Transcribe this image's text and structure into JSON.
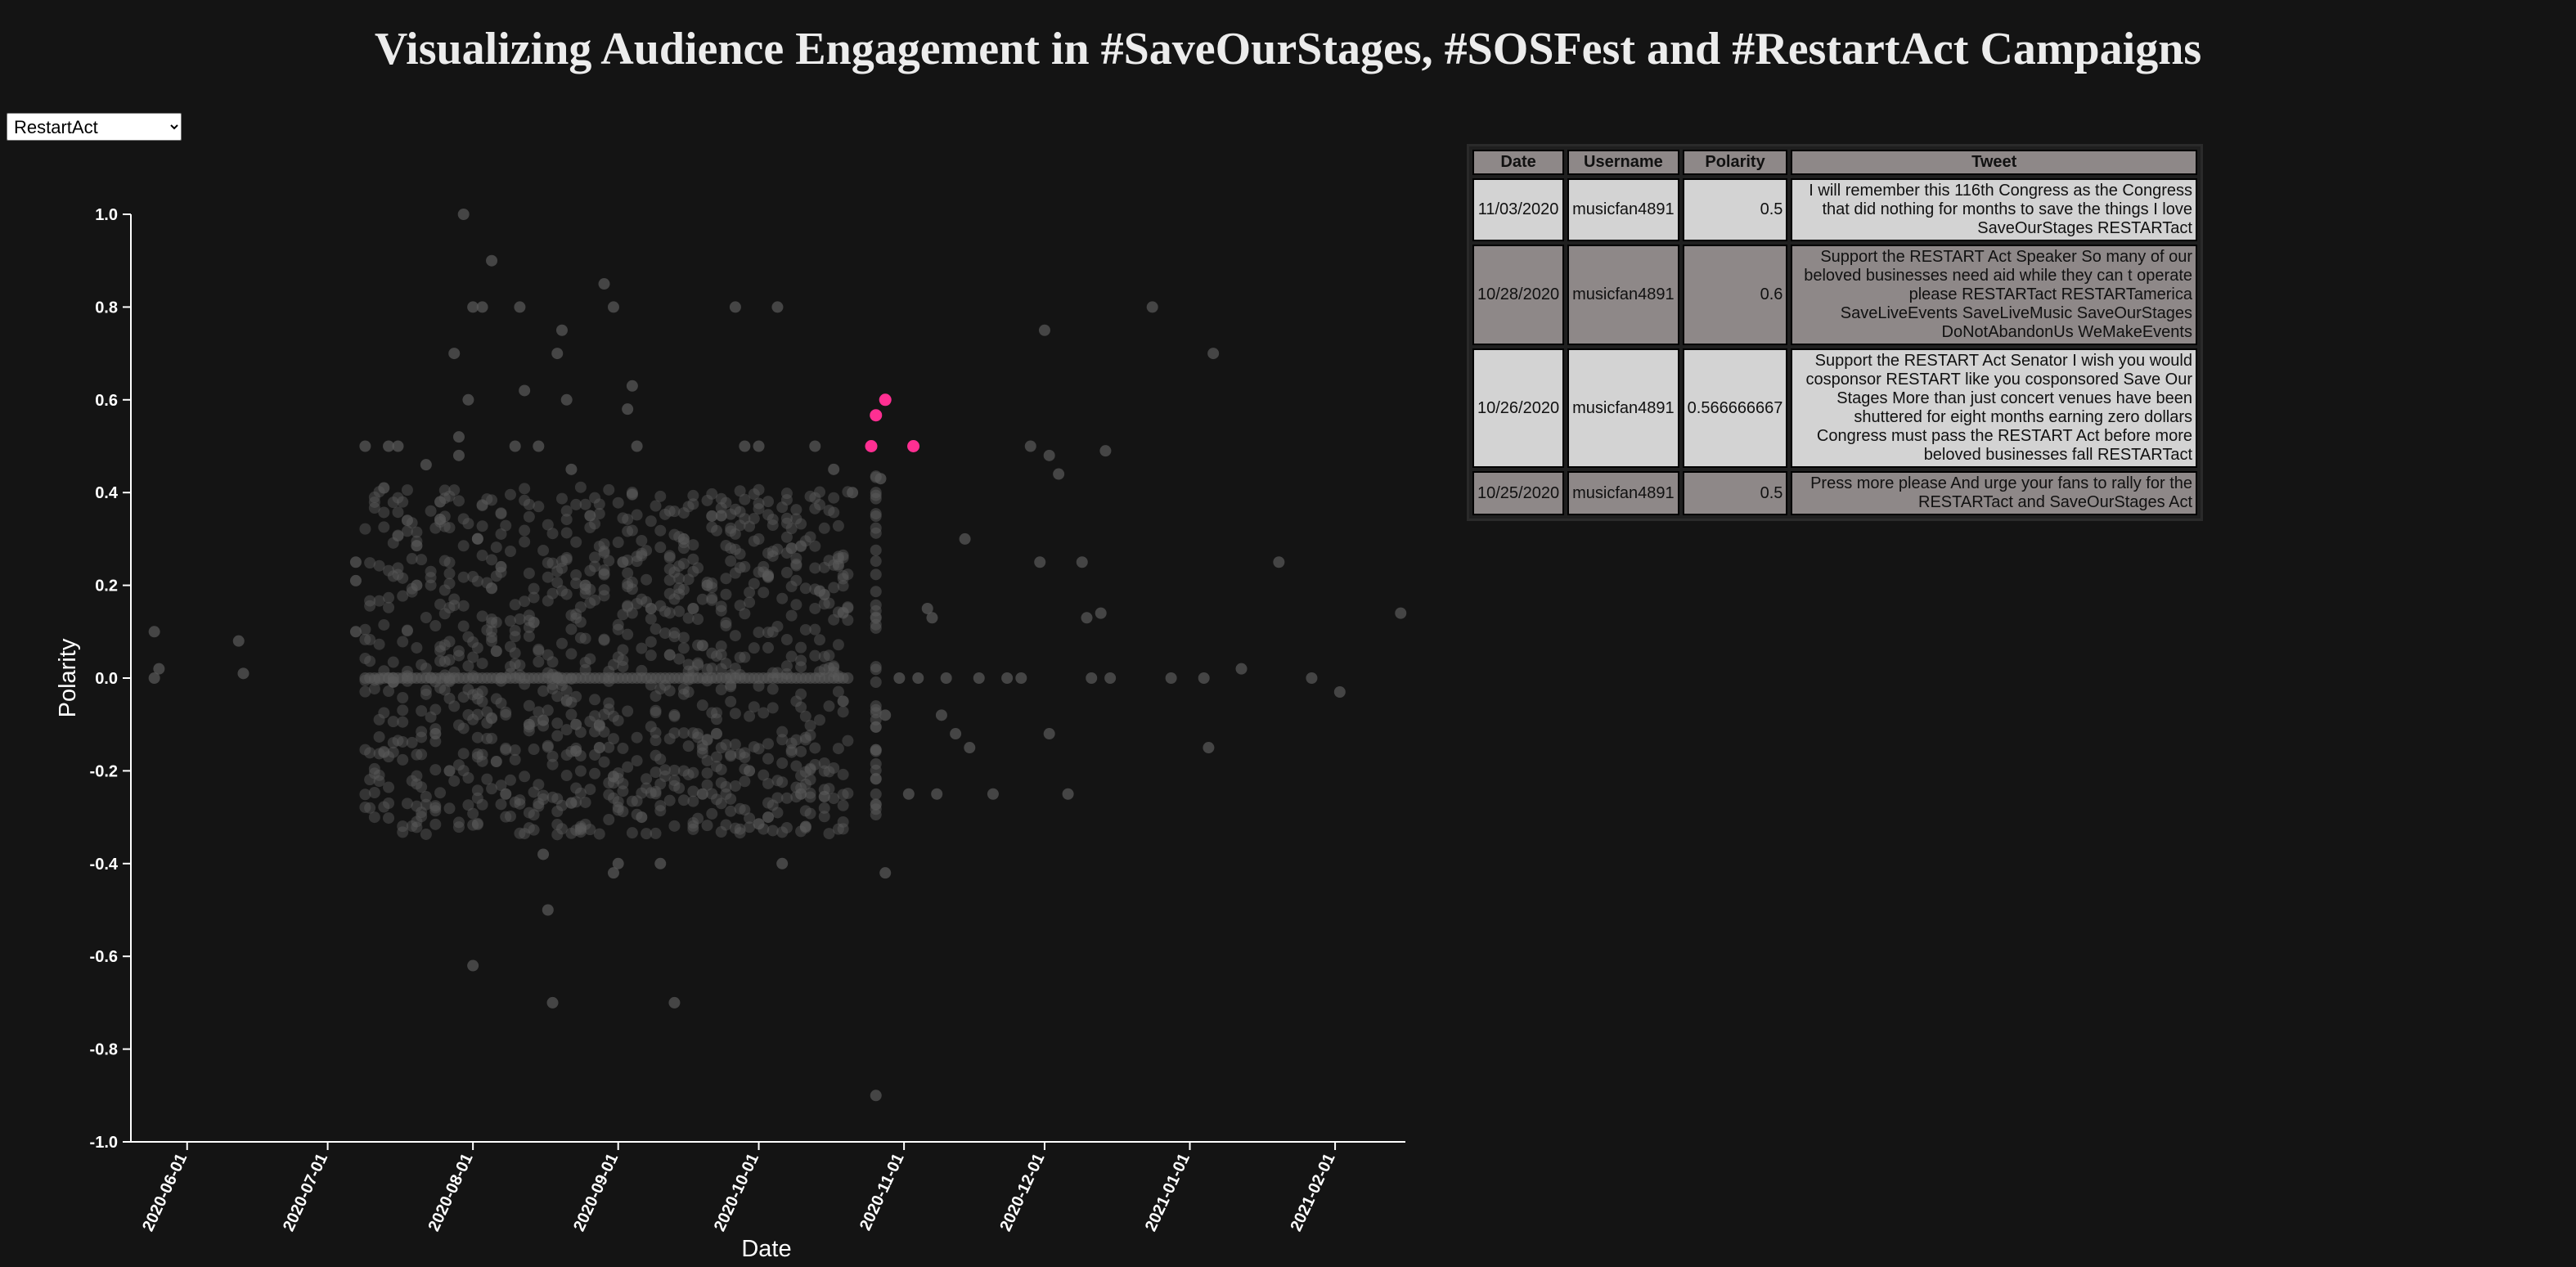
{
  "title": "Visualizing Audience Engagement in #SaveOurStages, #SOSFest and #RestartAct Campaigns",
  "dropdown": {
    "selected": "RestartAct",
    "options": [
      "RestartAct"
    ]
  },
  "colors": {
    "background": "#141414",
    "background_point": "#5a5a5a",
    "highlight_point": "#ff2f92",
    "axis": "#ffffff",
    "table_header": "#8e8888",
    "row_light": "#d3d3d3",
    "row_dark": "#8e8888"
  },
  "chart_data": {
    "type": "scatter",
    "xlabel": "Date",
    "ylabel": "Polarity",
    "xlim": [
      "2020-05-20",
      "2021-02-16"
    ],
    "ylim": [
      -1.0,
      1.0
    ],
    "x_ticks": [
      "2020-06-01",
      "2020-07-01",
      "2020-08-01",
      "2020-09-01",
      "2020-10-01",
      "2020-11-01",
      "2020-12-01",
      "2021-01-01",
      "2021-02-01"
    ],
    "y_ticks": [
      "1.0",
      "0.8",
      "0.6",
      "0.4",
      "0.2",
      "0.0",
      "-0.2",
      "-0.4",
      "-0.6",
      "-0.8",
      "-1.0"
    ],
    "grid": false,
    "series": [
      {
        "role": "background",
        "points": [
          {
            "x": "2020-05-25",
            "y": 0.1
          },
          {
            "x": "2020-05-25",
            "y": 0.0
          },
          {
            "x": "2020-05-26",
            "y": 0.02
          },
          {
            "x": "2020-06-12",
            "y": 0.08
          },
          {
            "x": "2020-06-13",
            "y": 0.01
          },
          {
            "x": "2020-07-07",
            "y": 0.25
          },
          {
            "x": "2020-07-07",
            "y": 0.21
          },
          {
            "x": "2020-07-07",
            "y": 0.1
          },
          {
            "x": "2020-07-09",
            "y": 0.5
          },
          {
            "x": "2020-07-13",
            "y": 0.41
          },
          {
            "x": "2020-07-14",
            "y": 0.5
          },
          {
            "x": "2020-07-16",
            "y": 0.5
          },
          {
            "x": "2020-07-18",
            "y": 0.34
          },
          {
            "x": "2020-07-20",
            "y": 0.2
          },
          {
            "x": "2020-07-22",
            "y": 0.46
          },
          {
            "x": "2020-07-24",
            "y": -0.12
          },
          {
            "x": "2020-07-25",
            "y": 0.38
          },
          {
            "x": "2020-07-27",
            "y": -0.2
          },
          {
            "x": "2020-07-28",
            "y": 0.7
          },
          {
            "x": "2020-07-29",
            "y": 0.48
          },
          {
            "x": "2020-07-29",
            "y": 0.52
          },
          {
            "x": "2020-07-30",
            "y": 1.0
          },
          {
            "x": "2020-07-31",
            "y": 0.6
          },
          {
            "x": "2020-08-01",
            "y": 0.8
          },
          {
            "x": "2020-08-01",
            "y": -0.62
          },
          {
            "x": "2020-08-02",
            "y": 0.3
          },
          {
            "x": "2020-08-03",
            "y": 0.8
          },
          {
            "x": "2020-08-05",
            "y": 0.9
          },
          {
            "x": "2020-08-06",
            "y": -0.18
          },
          {
            "x": "2020-08-07",
            "y": 0.24
          },
          {
            "x": "2020-08-08",
            "y": -0.25
          },
          {
            "x": "2020-08-10",
            "y": 0.5
          },
          {
            "x": "2020-08-11",
            "y": 0.8
          },
          {
            "x": "2020-08-12",
            "y": 0.62
          },
          {
            "x": "2020-08-13",
            "y": -0.1
          },
          {
            "x": "2020-08-14",
            "y": 0.12
          },
          {
            "x": "2020-08-15",
            "y": 0.5
          },
          {
            "x": "2020-08-16",
            "y": -0.38
          },
          {
            "x": "2020-08-17",
            "y": -0.5
          },
          {
            "x": "2020-08-18",
            "y": -0.7
          },
          {
            "x": "2020-08-19",
            "y": 0.7
          },
          {
            "x": "2020-08-20",
            "y": 0.75
          },
          {
            "x": "2020-08-21",
            "y": 0.6
          },
          {
            "x": "2020-08-22",
            "y": 0.45
          },
          {
            "x": "2020-08-23",
            "y": -0.1
          },
          {
            "x": "2020-08-25",
            "y": 0.2
          },
          {
            "x": "2020-08-26",
            "y": 0.35
          },
          {
            "x": "2020-08-28",
            "y": -0.15
          },
          {
            "x": "2020-08-29",
            "y": 0.85
          },
          {
            "x": "2020-08-31",
            "y": 0.8
          },
          {
            "x": "2020-08-31",
            "y": -0.42
          },
          {
            "x": "2020-09-01",
            "y": -0.4
          },
          {
            "x": "2020-09-02",
            "y": 0.25
          },
          {
            "x": "2020-09-03",
            "y": 0.58
          },
          {
            "x": "2020-09-04",
            "y": 0.63
          },
          {
            "x": "2020-09-05",
            "y": 0.5
          },
          {
            "x": "2020-09-06",
            "y": -0.3
          },
          {
            "x": "2020-09-08",
            "y": 0.15
          },
          {
            "x": "2020-09-10",
            "y": -0.4
          },
          {
            "x": "2020-09-12",
            "y": 0.05
          },
          {
            "x": "2020-09-13",
            "y": -0.7
          },
          {
            "x": "2020-09-15",
            "y": 0.3
          },
          {
            "x": "2020-09-17",
            "y": 0.15
          },
          {
            "x": "2020-09-19",
            "y": -0.25
          },
          {
            "x": "2020-09-20",
            "y": 0.2
          },
          {
            "x": "2020-09-22",
            "y": -0.12
          },
          {
            "x": "2020-09-23",
            "y": 0.35
          },
          {
            "x": "2020-09-26",
            "y": 0.8
          },
          {
            "x": "2020-09-28",
            "y": 0.5
          },
          {
            "x": "2020-09-29",
            "y": -0.2
          },
          {
            "x": "2020-10-01",
            "y": 0.5
          },
          {
            "x": "2020-10-03",
            "y": -0.3
          },
          {
            "x": "2020-10-05",
            "y": 0.8
          },
          {
            "x": "2020-10-06",
            "y": -0.4
          },
          {
            "x": "2020-10-08",
            "y": 0.28
          },
          {
            "x": "2020-10-10",
            "y": -0.25
          },
          {
            "x": "2020-10-11",
            "y": -0.32
          },
          {
            "x": "2020-10-13",
            "y": 0.5
          },
          {
            "x": "2020-10-15",
            "y": 0.18
          },
          {
            "x": "2020-10-17",
            "y": 0.45
          },
          {
            "x": "2020-10-19",
            "y": -0.05
          },
          {
            "x": "2020-10-21",
            "y": 0.4
          },
          {
            "x": "2020-10-26",
            "y": -0.9
          },
          {
            "x": "2020-10-27",
            "y": 0.43
          },
          {
            "x": "2020-10-28",
            "y": -0.42
          },
          {
            "x": "2020-10-28",
            "y": -0.08
          },
          {
            "x": "2020-10-31",
            "y": 0.0
          },
          {
            "x": "2020-11-02",
            "y": -0.25
          },
          {
            "x": "2020-11-04",
            "y": 0.0
          },
          {
            "x": "2020-11-06",
            "y": 0.15
          },
          {
            "x": "2020-11-07",
            "y": 0.13
          },
          {
            "x": "2020-11-08",
            "y": -0.25
          },
          {
            "x": "2020-11-09",
            "y": -0.08
          },
          {
            "x": "2020-11-10",
            "y": 0.0
          },
          {
            "x": "2020-11-12",
            "y": -0.12
          },
          {
            "x": "2020-11-14",
            "y": 0.3
          },
          {
            "x": "2020-11-15",
            "y": -0.15
          },
          {
            "x": "2020-11-17",
            "y": 0.0
          },
          {
            "x": "2020-11-20",
            "y": -0.25
          },
          {
            "x": "2020-11-23",
            "y": 0.0
          },
          {
            "x": "2020-11-26",
            "y": 0.0
          },
          {
            "x": "2020-11-28",
            "y": 0.5
          },
          {
            "x": "2020-11-30",
            "y": 0.25
          },
          {
            "x": "2020-12-01",
            "y": 0.75
          },
          {
            "x": "2020-12-02",
            "y": 0.48
          },
          {
            "x": "2020-12-02",
            "y": -0.12
          },
          {
            "x": "2020-12-04",
            "y": 0.44
          },
          {
            "x": "2020-12-06",
            "y": -0.25
          },
          {
            "x": "2020-12-09",
            "y": 0.25
          },
          {
            "x": "2020-12-10",
            "y": 0.13
          },
          {
            "x": "2020-12-11",
            "y": 0.0
          },
          {
            "x": "2020-12-13",
            "y": 0.14
          },
          {
            "x": "2020-12-14",
            "y": 0.49
          },
          {
            "x": "2020-12-15",
            "y": 0.0
          },
          {
            "x": "2020-12-24",
            "y": 0.8
          },
          {
            "x": "2020-12-28",
            "y": 0.0
          },
          {
            "x": "2021-01-04",
            "y": 0.0
          },
          {
            "x": "2021-01-05",
            "y": -0.15
          },
          {
            "x": "2021-01-06",
            "y": 0.7
          },
          {
            "x": "2021-01-12",
            "y": 0.02
          },
          {
            "x": "2021-01-20",
            "y": 0.25
          },
          {
            "x": "2021-01-27",
            "y": 0.0
          },
          {
            "x": "2021-02-02",
            "y": -0.03
          },
          {
            "x": "2021-02-15",
            "y": 0.14
          }
        ]
      },
      {
        "name": "musicfan4891",
        "role": "highlight",
        "points": [
          {
            "x": "2020-10-25",
            "y": 0.5
          },
          {
            "x": "2020-10-26",
            "y": 0.566666667
          },
          {
            "x": "2020-10-28",
            "y": 0.6
          },
          {
            "x": "2020-11-03",
            "y": 0.5
          }
        ]
      }
    ]
  },
  "table": {
    "headers": [
      "Date",
      "Username",
      "Polarity",
      "Tweet"
    ],
    "rows": [
      {
        "date": "11/03/2020",
        "username": "musicfan4891",
        "polarity": "0.5",
        "tweet": "I will remember this 116th Congress as the Congress that did nothing for months to save the things I love SaveOurStages RESTARTact"
      },
      {
        "date": "10/28/2020",
        "username": "musicfan4891",
        "polarity": "0.6",
        "tweet": "Support the RESTART Act Speaker So many of our beloved businesses need aid while they can t operate please RESTARTact RESTARTamerica SaveLiveEvents SaveLiveMusic SaveOurStages DoNotAbandonUs WeMakeEvents"
      },
      {
        "date": "10/26/2020",
        "username": "musicfan4891",
        "polarity": "0.566666667",
        "tweet": "Support the RESTART Act Senator I wish you would cosponsor RESTART like you cosponsored Save Our Stages More than just concert venues have been shuttered for eight months earning zero dollars Congress must pass the RESTART Act before more beloved businesses fall RESTARTact"
      },
      {
        "date": "10/25/2020",
        "username": "musicfan4891",
        "polarity": "0.5",
        "tweet": "Press more please And urge your fans to rally for the RESTARTact and SaveOurStages Act"
      }
    ]
  }
}
